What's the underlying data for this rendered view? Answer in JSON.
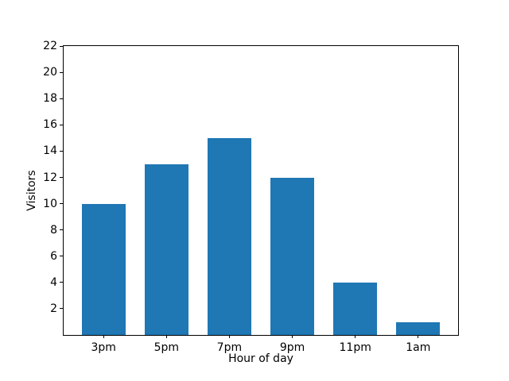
{
  "chart_data": {
    "type": "bar",
    "title": "",
    "xlabel": "Hour of day",
    "ylabel": "Visitors",
    "categories": [
      "3pm",
      "5pm",
      "7pm",
      "9pm",
      "11pm",
      "1am"
    ],
    "values": [
      10,
      13,
      15,
      12,
      4,
      1
    ],
    "ylim": [
      0,
      22
    ],
    "yticks": [
      2,
      4,
      6,
      8,
      10,
      12,
      14,
      16,
      18,
      20,
      22
    ],
    "xlim": [
      -0.635,
      5.635
    ],
    "bar_width_units": 0.7,
    "grid": false,
    "legend_position": "none",
    "bar_color": "#1f77b4"
  },
  "colors": {
    "background": "#ffffff",
    "axis": "#000000",
    "text": "#000000",
    "bar": "#1f77b4"
  }
}
